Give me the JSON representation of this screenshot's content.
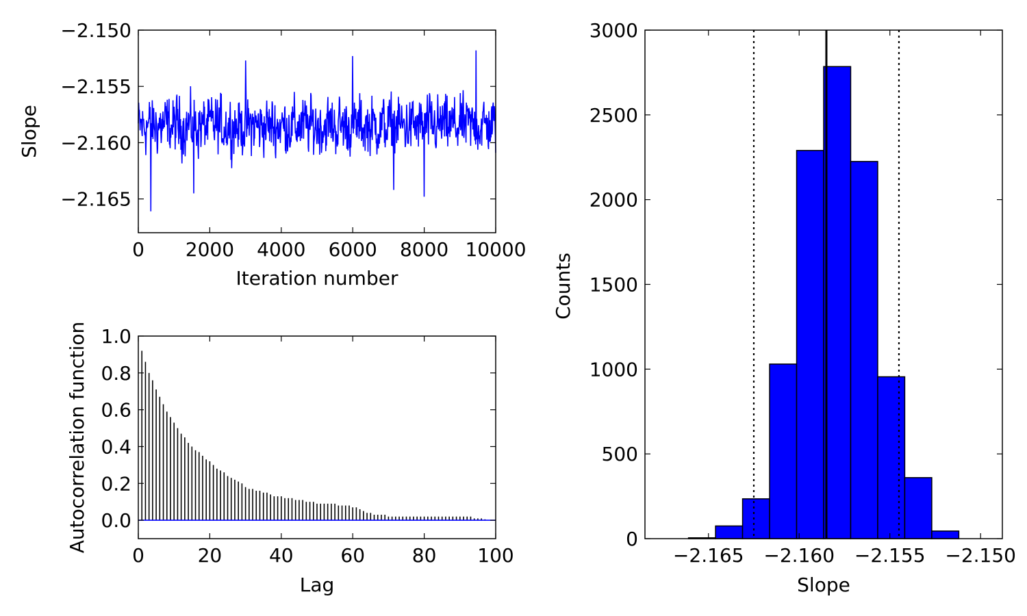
{
  "chart_data": [
    {
      "id": "trace",
      "type": "line",
      "xlabel": "Iteration number",
      "ylabel": "Slope",
      "xlim": [
        0,
        10000
      ],
      "ylim": [
        -2.168,
        -2.15
      ],
      "xticks": [
        0,
        2000,
        4000,
        6000,
        8000,
        10000
      ],
      "xtick_labels": [
        "0",
        "2000",
        "4000",
        "6000",
        "8000",
        "10000"
      ],
      "yticks": [
        -2.15,
        -2.155,
        -2.16,
        -2.165
      ],
      "ytick_labels": [
        "−2.150",
        "−2.155",
        "−2.160",
        "−2.165"
      ],
      "color": "#0000ff",
      "n_points": 1000,
      "mean": -2.1585,
      "spread": 0.0018,
      "extremes": [
        {
          "x": 350,
          "y": -2.1661
        },
        {
          "x": 1550,
          "y": -2.1645
        },
        {
          "x": 8000,
          "y": -2.1648
        },
        {
          "x": 7150,
          "y": -2.1642
        },
        {
          "x": 9450,
          "y": -2.1518
        },
        {
          "x": 6000,
          "y": -2.1523
        },
        {
          "x": 3000,
          "y": -2.1527
        }
      ]
    },
    {
      "id": "acf",
      "type": "bar",
      "xlabel": "Lag",
      "ylabel": "Autocorrelation function",
      "xlim": [
        0,
        100
      ],
      "ylim": [
        -0.1,
        1.0
      ],
      "xticks": [
        0,
        20,
        40,
        60,
        80,
        100
      ],
      "xtick_labels": [
        "0",
        "20",
        "40",
        "60",
        "80",
        "100"
      ],
      "yticks": [
        0.0,
        0.2,
        0.4,
        0.6,
        0.8,
        1.0
      ],
      "ytick_labels": [
        "0.0",
        "0.2",
        "0.4",
        "0.6",
        "0.8",
        "1.0"
      ],
      "bar_color": "#000000",
      "baseline_color": "#0000ff",
      "lags": [
        1,
        2,
        3,
        4,
        5,
        6,
        7,
        8,
        9,
        10,
        11,
        12,
        13,
        14,
        15,
        16,
        17,
        18,
        19,
        20,
        21,
        22,
        23,
        24,
        25,
        26,
        27,
        28,
        29,
        30,
        31,
        32,
        33,
        34,
        35,
        36,
        37,
        38,
        39,
        40,
        41,
        42,
        43,
        44,
        45,
        46,
        47,
        48,
        49,
        50,
        51,
        52,
        53,
        54,
        55,
        56,
        57,
        58,
        59,
        60,
        61,
        62,
        63,
        64,
        65,
        66,
        67,
        68,
        69,
        70,
        71,
        72,
        73,
        74,
        75,
        76,
        77,
        78,
        79,
        80,
        81,
        82,
        83,
        84,
        85,
        86,
        87,
        88,
        89,
        90,
        91,
        92,
        93,
        94,
        95,
        96,
        97
      ],
      "values": [
        0.92,
        0.86,
        0.8,
        0.76,
        0.71,
        0.67,
        0.63,
        0.59,
        0.56,
        0.53,
        0.5,
        0.47,
        0.45,
        0.42,
        0.4,
        0.38,
        0.37,
        0.35,
        0.33,
        0.32,
        0.3,
        0.28,
        0.27,
        0.26,
        0.24,
        0.23,
        0.22,
        0.21,
        0.2,
        0.18,
        0.17,
        0.17,
        0.16,
        0.16,
        0.15,
        0.15,
        0.14,
        0.13,
        0.13,
        0.13,
        0.12,
        0.12,
        0.12,
        0.11,
        0.11,
        0.11,
        0.1,
        0.1,
        0.1,
        0.09,
        0.09,
        0.09,
        0.09,
        0.09,
        0.09,
        0.08,
        0.08,
        0.08,
        0.08,
        0.07,
        0.07,
        0.06,
        0.05,
        0.04,
        0.04,
        0.03,
        0.03,
        0.03,
        0.03,
        0.02,
        0.02,
        0.02,
        0.02,
        0.02,
        0.02,
        0.02,
        0.02,
        0.02,
        0.02,
        0.02,
        0.02,
        0.02,
        0.02,
        0.02,
        0.02,
        0.02,
        0.02,
        0.02,
        0.02,
        0.02,
        0.02,
        0.02,
        0.02,
        0.01,
        0.01,
        0.01,
        0.005
      ]
    },
    {
      "id": "histogram",
      "type": "bar",
      "xlabel": "Slope",
      "ylabel": "Counts",
      "xlim": [
        -2.1685,
        -2.1488
      ],
      "ylim": [
        0,
        3000
      ],
      "xticks": [
        -2.165,
        -2.16,
        -2.155,
        -2.15
      ],
      "xtick_labels": [
        "−2.165",
        "−2.160",
        "−2.155",
        "−2.150"
      ],
      "yticks": [
        0,
        500,
        1000,
        1500,
        2000,
        2500,
        3000
      ],
      "ytick_labels": [
        "0",
        "500",
        "1000",
        "1500",
        "2000",
        "2500",
        "3000"
      ],
      "bar_color": "#0000ff",
      "bin_edges": [
        -2.1661,
        -2.16461,
        -2.16312,
        -2.16163,
        -2.16014,
        -2.15865,
        -2.15716,
        -2.15567,
        -2.15418,
        -2.15269,
        -2.1512
      ],
      "counts": [
        5,
        75,
        235,
        1030,
        2290,
        2785,
        2225,
        955,
        360,
        45
      ],
      "mean": -2.1585,
      "mean_line": "solid",
      "interval": [
        -2.1625,
        -2.1545
      ],
      "interval_line": "dotted"
    }
  ]
}
